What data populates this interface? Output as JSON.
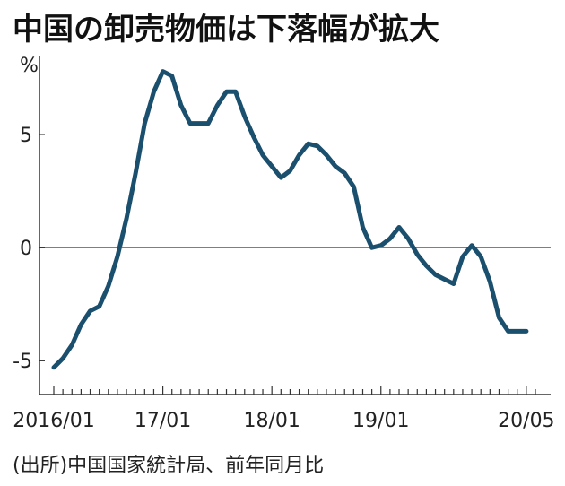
{
  "chart_data": {
    "type": "line",
    "title": "中国の卸売物価は下落幅が拡大",
    "ylabel": "%",
    "xlabel": "",
    "source": "(出所)中国国家統計局、前年同月比",
    "ylim": [
      -6.5,
      8.5
    ],
    "yticks": [
      5,
      0,
      -5
    ],
    "ytick_labels": [
      "5",
      "0",
      "-5"
    ],
    "xlim": [
      0,
      53
    ],
    "xtick_labels": [
      {
        "x": 0,
        "label": "2016/01"
      },
      {
        "x": 12,
        "label": "17/01"
      },
      {
        "x": 24,
        "label": "18/01"
      },
      {
        "x": 36,
        "label": "19/01"
      },
      {
        "x": 52,
        "label": "20/05"
      }
    ],
    "zero_line": true,
    "series_color": "#1b4f6e",
    "series": [
      {
        "x": [
          0,
          1,
          2,
          3,
          4,
          5,
          6,
          7,
          8,
          9,
          10,
          11,
          12,
          13,
          14,
          15,
          16,
          17,
          18,
          19,
          20,
          21,
          22,
          23,
          24,
          25,
          26,
          27,
          28,
          29,
          30,
          31,
          32,
          33,
          34,
          35,
          36,
          37,
          38,
          39,
          40,
          41,
          42,
          43,
          44,
          45,
          46,
          47,
          48,
          49,
          50,
          51,
          52
        ],
        "values": [
          -5.3,
          -4.9,
          -4.3,
          -3.4,
          -2.8,
          -2.6,
          -1.7,
          -0.4,
          1.3,
          3.3,
          5.5,
          6.9,
          7.8,
          7.6,
          6.3,
          5.5,
          5.5,
          5.5,
          6.3,
          6.9,
          6.9,
          5.8,
          4.9,
          4.1,
          3.6,
          3.1,
          3.4,
          4.1,
          4.6,
          4.5,
          4.1,
          3.6,
          3.3,
          2.7,
          0.9,
          0.0,
          0.1,
          0.4,
          0.9,
          0.4,
          -0.3,
          -0.8,
          -1.2,
          -1.4,
          -1.6,
          -0.4,
          0.1,
          -0.4,
          -1.5,
          -3.1,
          -3.7,
          -3.7,
          -3.7
        ]
      }
    ]
  }
}
